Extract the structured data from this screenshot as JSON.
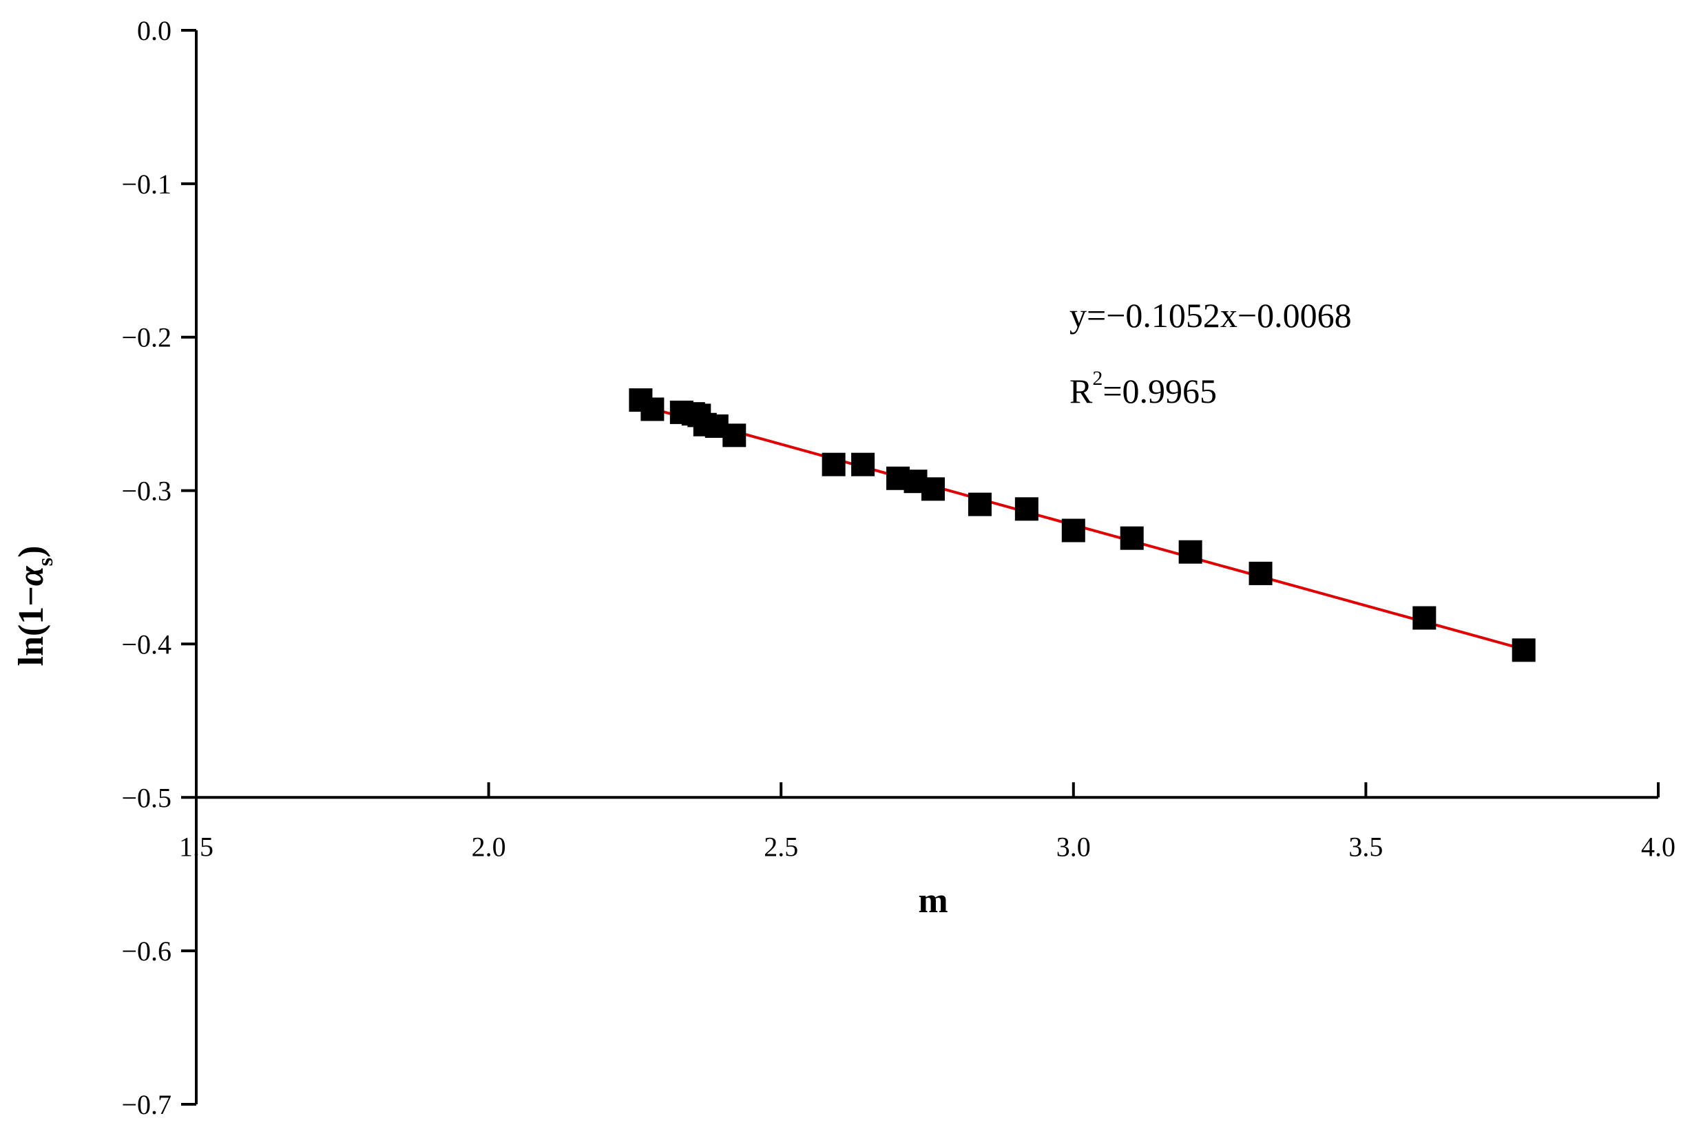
{
  "chart_data": {
    "type": "scatter",
    "title": "",
    "xlabel": "m",
    "ylabel": {
      "prefix": "ln(1−",
      "symbol": "α",
      "subscript": "s",
      "suffix": ")"
    },
    "xlim": [
      1.5,
      4.0
    ],
    "ylim": [
      -0.7,
      0.0
    ],
    "x_axis_crosses_y_at": -0.5,
    "x_ticks": [
      {
        "value": 1.5,
        "label": "1.5"
      },
      {
        "value": 2.0,
        "label": "2.0"
      },
      {
        "value": 2.5,
        "label": "2.5"
      },
      {
        "value": 3.0,
        "label": "3.0"
      },
      {
        "value": 3.5,
        "label": "3.5"
      },
      {
        "value": 4.0,
        "label": "4.0"
      }
    ],
    "y_ticks": [
      {
        "value": 0.0,
        "label": "0.0"
      },
      {
        "value": -0.1,
        "label": "−0.1"
      },
      {
        "value": -0.2,
        "label": "−0.2"
      },
      {
        "value": -0.3,
        "label": "−0.3"
      },
      {
        "value": -0.4,
        "label": "−0.4"
      },
      {
        "value": -0.5,
        "label": "−0.5"
      },
      {
        "value": -0.6,
        "label": "−0.6"
      },
      {
        "value": -0.7,
        "label": "−0.7"
      }
    ],
    "grid": false,
    "series": [
      {
        "marker": "square",
        "color": "#000000",
        "points": [
          {
            "x": 2.26,
            "y": -0.241
          },
          {
            "x": 2.28,
            "y": -0.247
          },
          {
            "x": 2.33,
            "y": -0.249
          },
          {
            "x": 2.35,
            "y": -0.25
          },
          {
            "x": 2.36,
            "y": -0.251
          },
          {
            "x": 2.37,
            "y": -0.257
          },
          {
            "x": 2.39,
            "y": -0.258
          },
          {
            "x": 2.42,
            "y": -0.264
          },
          {
            "x": 2.59,
            "y": -0.283
          },
          {
            "x": 2.64,
            "y": -0.283
          },
          {
            "x": 2.7,
            "y": -0.292
          },
          {
            "x": 2.73,
            "y": -0.294
          },
          {
            "x": 2.76,
            "y": -0.299
          },
          {
            "x": 2.84,
            "y": -0.309
          },
          {
            "x": 2.92,
            "y": -0.312
          },
          {
            "x": 3.0,
            "y": -0.326
          },
          {
            "x": 3.1,
            "y": -0.331
          },
          {
            "x": 3.2,
            "y": -0.34
          },
          {
            "x": 3.32,
            "y": -0.354
          },
          {
            "x": 3.6,
            "y": -0.383
          },
          {
            "x": 3.77,
            "y": -0.404
          }
        ]
      }
    ],
    "fit": {
      "color": "#e00000",
      "slope": -0.1052,
      "intercept": -0.0068,
      "x_start": 2.26,
      "x_end": 3.77,
      "equation_label": "y=−0.1052x−0.0068",
      "r2_prefix": "R",
      "r2_sup": "2",
      "r2_value": "=0.9965"
    }
  }
}
